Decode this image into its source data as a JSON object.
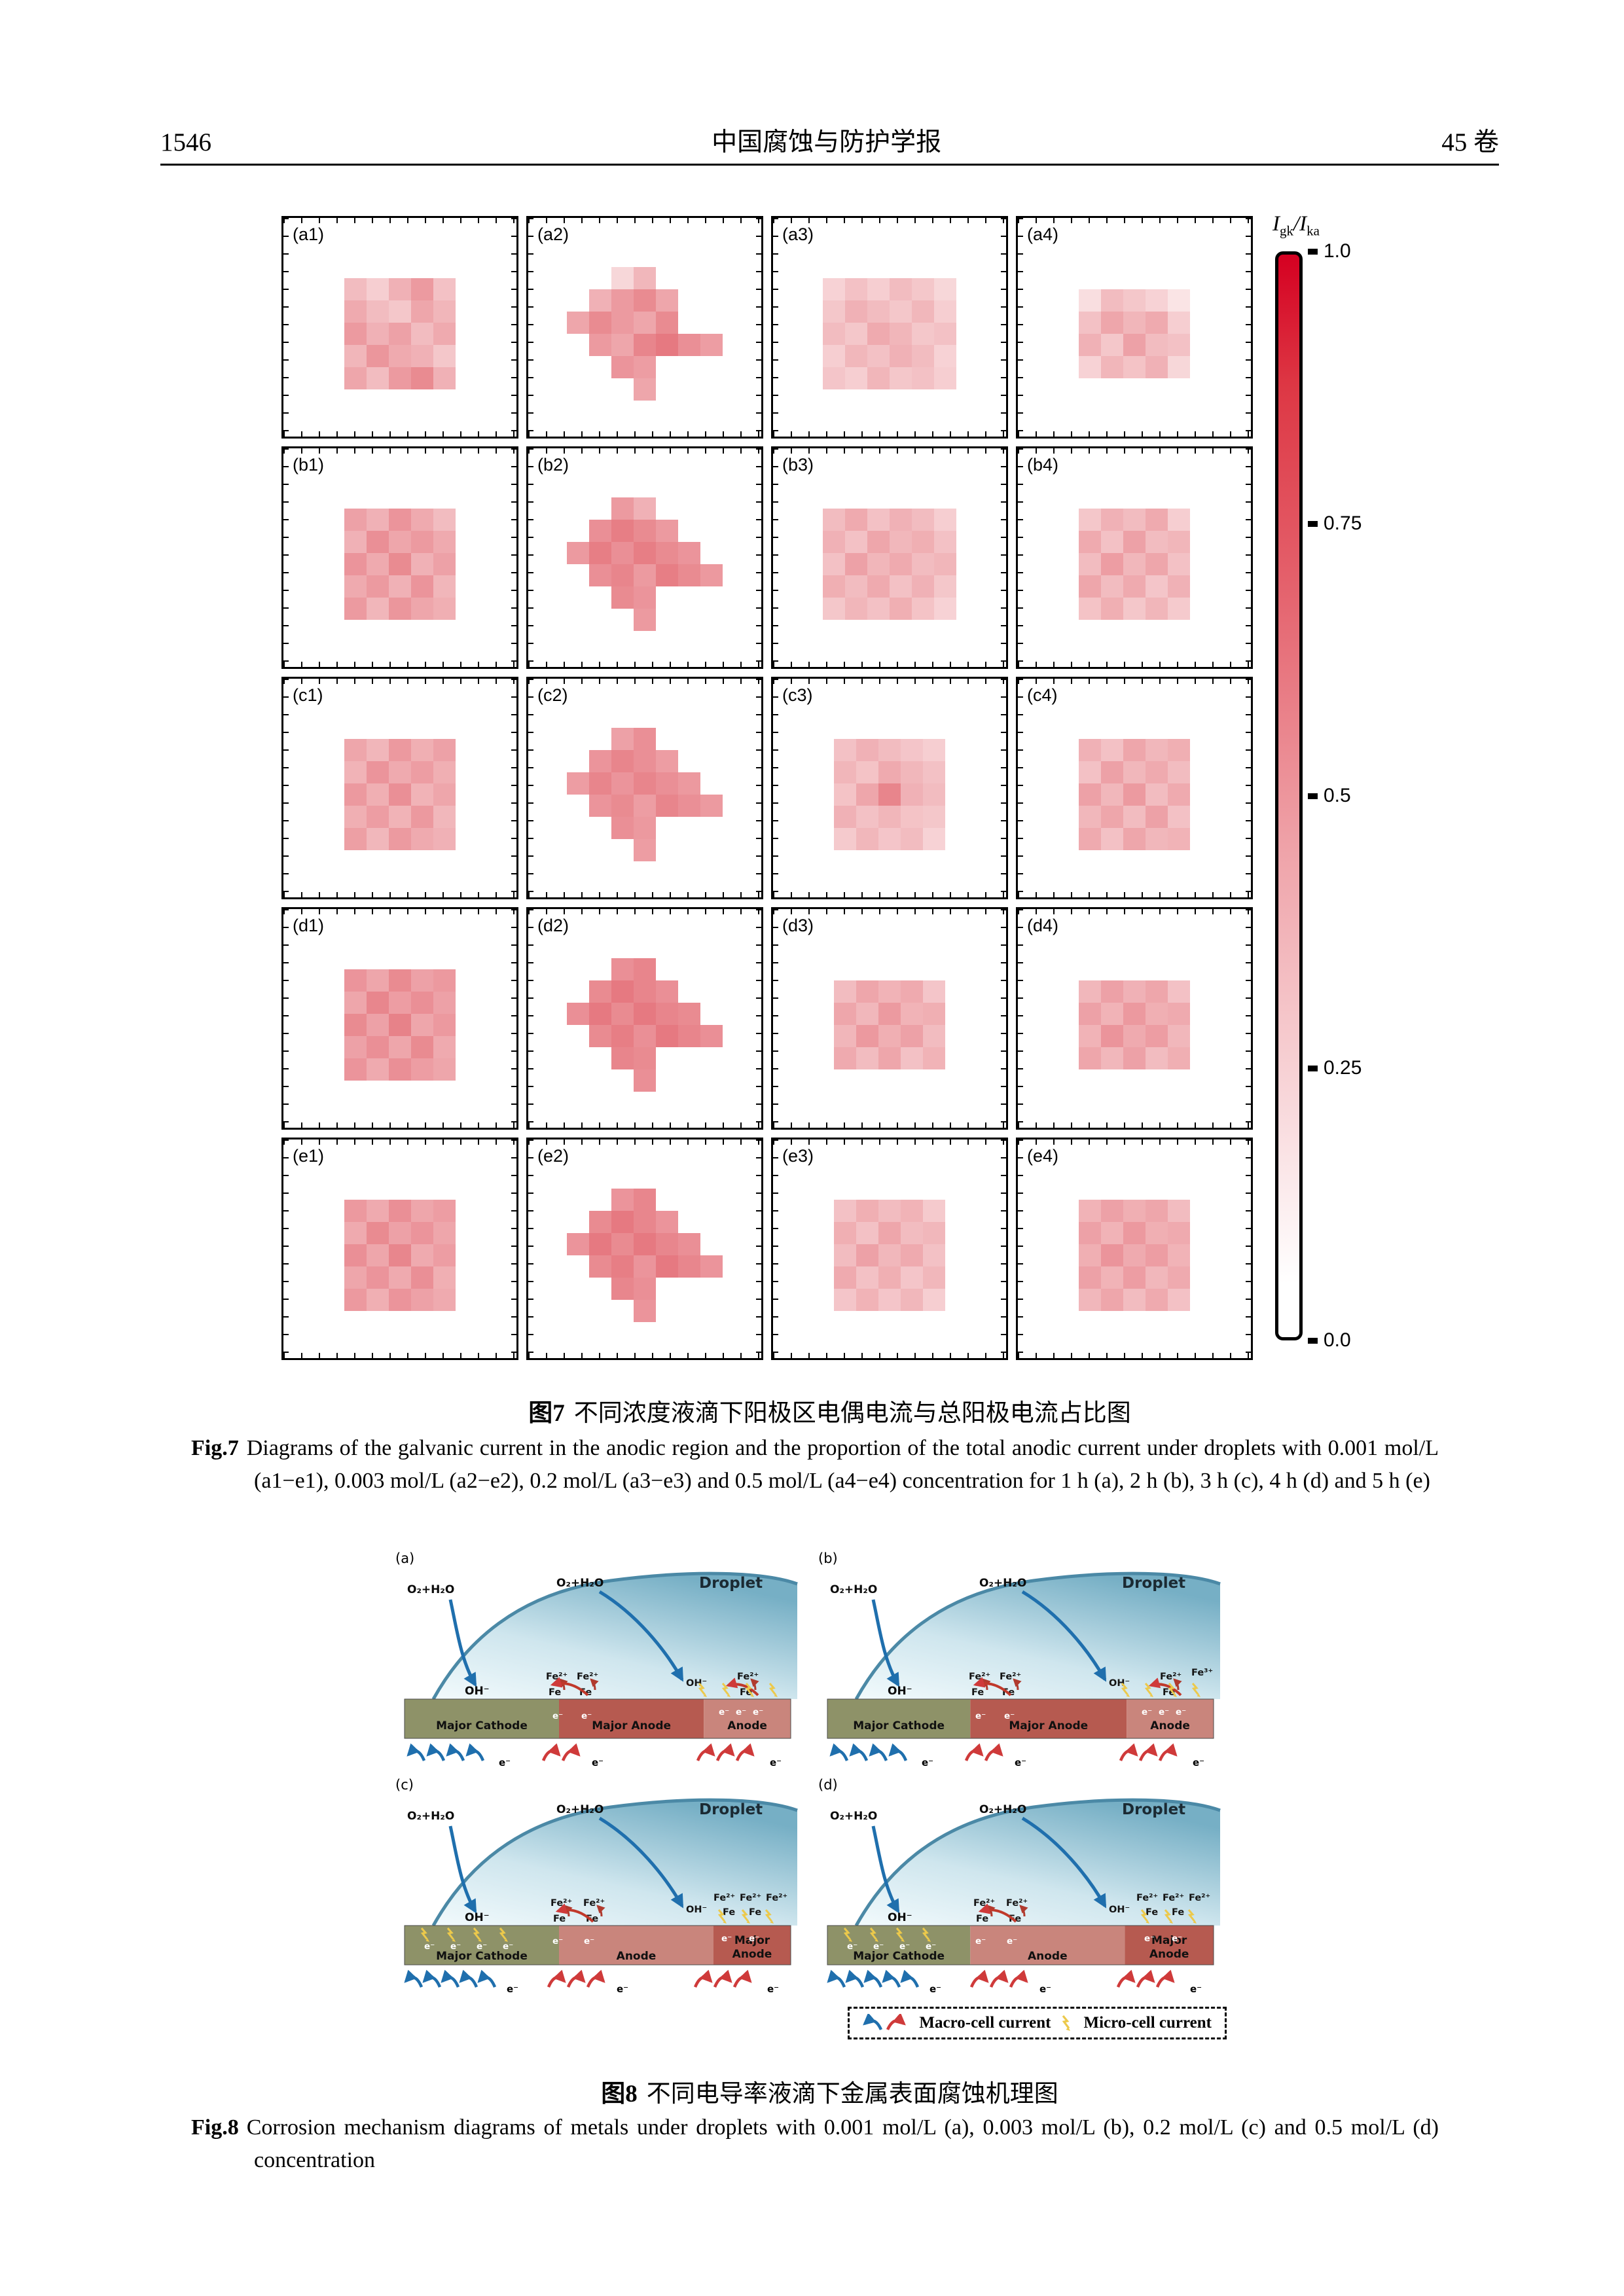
{
  "header": {
    "page_number": "1546",
    "journal": "中国腐蚀与防护学报",
    "volume": "45 卷"
  },
  "fig7": {
    "colorbar": {
      "title": {
        "i1": "I",
        "s1": "gk",
        "sep": "/",
        "i2": "I",
        "s2": "ka"
      },
      "ticks": [
        "1.0",
        "0.75",
        "0.5",
        "0.25",
        "0.0"
      ],
      "top_color": "#d50021",
      "bottom_color": "#ffffff"
    },
    "caption_cn_tag": "图7",
    "caption_cn": "不同浓度液滴下阳极区电偶电流与总阳极电流占比图",
    "caption_en_tag": "Fig.7",
    "caption_en": "Diagrams of the galvanic current in the anodic region and the proportion of the total anodic current under droplets with 0.001 mol/L (a1−e1), 0.003 mol/L (a2−e2), 0.2 mol/L (a3−e3) and 0.5 mol/L (a4−e4) concentration for 1 h (a), 2 h (b), 3 h (c), 4 h (d) and 5 h (e)",
    "heat_color": "213,32,45",
    "panels": [
      {
        "id": "a1",
        "label": "(a1)",
        "grid": [
          [
            0.3,
            0.22,
            0.35,
            0.45,
            0.28
          ],
          [
            0.38,
            0.3,
            0.25,
            0.4,
            0.33
          ],
          [
            0.45,
            0.35,
            0.42,
            0.3,
            0.38
          ],
          [
            0.33,
            0.47,
            0.38,
            0.35,
            0.25
          ],
          [
            0.4,
            0.3,
            0.45,
            0.52,
            0.35
          ]
        ]
      },
      {
        "id": "a2",
        "label": "(a2)",
        "grid": [
          [
            0,
            0,
            0.18,
            0.32,
            0,
            0,
            0
          ],
          [
            0,
            0.35,
            0.45,
            0.52,
            0.4,
            0,
            0
          ],
          [
            0.4,
            0.52,
            0.45,
            0.4,
            0.52,
            0,
            0
          ],
          [
            0,
            0.45,
            0.4,
            0.55,
            0.6,
            0.5,
            0.44
          ],
          [
            0,
            0,
            0.48,
            0.44,
            0,
            0,
            0
          ],
          [
            0,
            0,
            0,
            0.4,
            0,
            0,
            0
          ]
        ]
      },
      {
        "id": "a3",
        "label": "(a3)",
        "grid": [
          [
            0.2,
            0.28,
            0.22,
            0.3,
            0.25,
            0.18
          ],
          [
            0.25,
            0.35,
            0.3,
            0.25,
            0.32,
            0.22
          ],
          [
            0.3,
            0.25,
            0.38,
            0.33,
            0.25,
            0.28
          ],
          [
            0.22,
            0.32,
            0.28,
            0.35,
            0.3,
            0.2
          ],
          [
            0.26,
            0.22,
            0.33,
            0.25,
            0.28,
            0.22
          ]
        ]
      },
      {
        "id": "a4",
        "label": "(a4)",
        "grid": [
          [
            0.15,
            0.3,
            0.25,
            0.2,
            0.12
          ],
          [
            0.28,
            0.4,
            0.33,
            0.38,
            0.22
          ],
          [
            0.35,
            0.25,
            0.42,
            0.3,
            0.28
          ],
          [
            0.2,
            0.33,
            0.27,
            0.35,
            0.18
          ]
        ]
      },
      {
        "id": "b1",
        "label": "(b1)",
        "grid": [
          [
            0.42,
            0.35,
            0.48,
            0.38,
            0.3
          ],
          [
            0.35,
            0.5,
            0.4,
            0.45,
            0.38
          ],
          [
            0.48,
            0.38,
            0.52,
            0.35,
            0.42
          ],
          [
            0.38,
            0.45,
            0.35,
            0.48,
            0.33
          ],
          [
            0.45,
            0.33,
            0.47,
            0.4,
            0.36
          ]
        ]
      },
      {
        "id": "b2",
        "label": "(b2)",
        "grid": [
          [
            0,
            0,
            0.45,
            0.35,
            0,
            0,
            0
          ],
          [
            0,
            0.5,
            0.58,
            0.52,
            0.45,
            0,
            0
          ],
          [
            0.45,
            0.58,
            0.5,
            0.58,
            0.52,
            0.48,
            0
          ],
          [
            0,
            0.5,
            0.55,
            0.45,
            0.58,
            0.52,
            0.46
          ],
          [
            0,
            0,
            0.52,
            0.48,
            0,
            0,
            0
          ],
          [
            0,
            0,
            0,
            0.45,
            0,
            0,
            0
          ]
        ]
      },
      {
        "id": "b3",
        "label": "(b3)",
        "grid": [
          [
            0.3,
            0.38,
            0.28,
            0.35,
            0.3,
            0.22
          ],
          [
            0.35,
            0.28,
            0.4,
            0.32,
            0.36,
            0.28
          ],
          [
            0.28,
            0.42,
            0.33,
            0.38,
            0.3,
            0.33
          ],
          [
            0.36,
            0.3,
            0.38,
            0.28,
            0.35,
            0.25
          ],
          [
            0.25,
            0.33,
            0.28,
            0.36,
            0.27,
            0.2
          ]
        ]
      },
      {
        "id": "b4",
        "label": "(b4)",
        "grid": [
          [
            0.25,
            0.35,
            0.3,
            0.38,
            0.22
          ],
          [
            0.38,
            0.28,
            0.42,
            0.3,
            0.33
          ],
          [
            0.3,
            0.44,
            0.32,
            0.4,
            0.28
          ],
          [
            0.4,
            0.3,
            0.38,
            0.26,
            0.35
          ],
          [
            0.27,
            0.36,
            0.25,
            0.33,
            0.24
          ]
        ]
      },
      {
        "id": "c1",
        "label": "(c1)",
        "grid": [
          [
            0.4,
            0.33,
            0.46,
            0.36,
            0.42
          ],
          [
            0.34,
            0.48,
            0.38,
            0.44,
            0.36
          ],
          [
            0.46,
            0.36,
            0.5,
            0.34,
            0.4
          ],
          [
            0.36,
            0.44,
            0.34,
            0.46,
            0.32
          ],
          [
            0.43,
            0.32,
            0.45,
            0.38,
            0.35
          ]
        ]
      },
      {
        "id": "c2",
        "label": "(c2)",
        "grid": [
          [
            0,
            0,
            0.42,
            0.5,
            0,
            0,
            0
          ],
          [
            0,
            0.48,
            0.55,
            0.5,
            0.44,
            0,
            0
          ],
          [
            0.44,
            0.55,
            0.48,
            0.55,
            0.5,
            0.46,
            0
          ],
          [
            0,
            0.48,
            0.52,
            0.44,
            0.55,
            0.5,
            0.45
          ],
          [
            0,
            0,
            0.5,
            0.46,
            0,
            0,
            0
          ],
          [
            0,
            0,
            0,
            0.44,
            0,
            0,
            0
          ]
        ]
      },
      {
        "id": "c3",
        "label": "(c3)",
        "grid": [
          [
            0.28,
            0.35,
            0.3,
            0.26,
            0.22
          ],
          [
            0.33,
            0.27,
            0.38,
            0.32,
            0.28
          ],
          [
            0.27,
            0.4,
            0.55,
            0.35,
            0.3
          ],
          [
            0.35,
            0.28,
            0.33,
            0.27,
            0.25
          ],
          [
            0.24,
            0.32,
            0.26,
            0.3,
            0.2
          ]
        ]
      },
      {
        "id": "c4",
        "label": "(c4)",
        "grid": [
          [
            0.35,
            0.28,
            0.4,
            0.32,
            0.36
          ],
          [
            0.28,
            0.42,
            0.32,
            0.38,
            0.3
          ],
          [
            0.42,
            0.32,
            0.45,
            0.3,
            0.38
          ],
          [
            0.32,
            0.4,
            0.3,
            0.42,
            0.28
          ],
          [
            0.38,
            0.28,
            0.4,
            0.32,
            0.34
          ]
        ]
      },
      {
        "id": "d1",
        "label": "(d1)",
        "grid": [
          [
            0.48,
            0.4,
            0.52,
            0.42,
            0.46
          ],
          [
            0.4,
            0.54,
            0.44,
            0.5,
            0.42
          ],
          [
            0.52,
            0.42,
            0.56,
            0.4,
            0.46
          ],
          [
            0.42,
            0.5,
            0.4,
            0.52,
            0.38
          ],
          [
            0.48,
            0.38,
            0.5,
            0.44,
            0.4
          ]
        ]
      },
      {
        "id": "d2",
        "label": "(d2)",
        "grid": [
          [
            0,
            0,
            0.5,
            0.55,
            0,
            0,
            0
          ],
          [
            0,
            0.52,
            0.6,
            0.55,
            0.5,
            0,
            0
          ],
          [
            0.5,
            0.6,
            0.52,
            0.6,
            0.55,
            0.52,
            0
          ],
          [
            0,
            0.52,
            0.58,
            0.5,
            0.6,
            0.55,
            0.5
          ],
          [
            0,
            0,
            0.55,
            0.52,
            0,
            0,
            0
          ],
          [
            0,
            0,
            0,
            0.5,
            0,
            0,
            0
          ]
        ]
      },
      {
        "id": "d3",
        "label": "(d3)",
        "grid": [
          [
            0.3,
            0.4,
            0.34,
            0.38,
            0.26
          ],
          [
            0.4,
            0.32,
            0.45,
            0.34,
            0.36
          ],
          [
            0.33,
            0.46,
            0.36,
            0.42,
            0.3
          ],
          [
            0.38,
            0.3,
            0.4,
            0.28,
            0.34
          ]
        ]
      },
      {
        "id": "d4",
        "label": "(d4)",
        "grid": [
          [
            0.32,
            0.42,
            0.35,
            0.4,
            0.28
          ],
          [
            0.42,
            0.34,
            0.46,
            0.36,
            0.38
          ],
          [
            0.34,
            0.48,
            0.38,
            0.44,
            0.32
          ],
          [
            0.4,
            0.32,
            0.42,
            0.3,
            0.36
          ]
        ]
      },
      {
        "id": "e1",
        "label": "(e1)",
        "grid": [
          [
            0.46,
            0.38,
            0.5,
            0.4,
            0.44
          ],
          [
            0.38,
            0.52,
            0.42,
            0.48,
            0.4
          ],
          [
            0.5,
            0.4,
            0.54,
            0.38,
            0.44
          ],
          [
            0.4,
            0.48,
            0.38,
            0.5,
            0.36
          ],
          [
            0.46,
            0.36,
            0.48,
            0.42,
            0.38
          ]
        ]
      },
      {
        "id": "e2",
        "label": "(e2)",
        "grid": [
          [
            0,
            0,
            0.48,
            0.54,
            0,
            0,
            0
          ],
          [
            0,
            0.52,
            0.6,
            0.54,
            0.48,
            0,
            0
          ],
          [
            0.48,
            0.6,
            0.52,
            0.6,
            0.54,
            0.5,
            0
          ],
          [
            0,
            0.52,
            0.58,
            0.48,
            0.6,
            0.54,
            0.48
          ],
          [
            0,
            0,
            0.54,
            0.5,
            0,
            0,
            0
          ],
          [
            0,
            0,
            0,
            0.48,
            0,
            0,
            0
          ]
        ]
      },
      {
        "id": "e3",
        "label": "(e3)",
        "grid": [
          [
            0.28,
            0.36,
            0.3,
            0.34,
            0.24
          ],
          [
            0.36,
            0.28,
            0.4,
            0.3,
            0.32
          ],
          [
            0.3,
            0.42,
            0.32,
            0.38,
            0.28
          ],
          [
            0.38,
            0.28,
            0.36,
            0.26,
            0.32
          ],
          [
            0.26,
            0.34,
            0.26,
            0.32,
            0.22
          ]
        ]
      },
      {
        "id": "e4",
        "label": "(e4)",
        "grid": [
          [
            0.34,
            0.42,
            0.36,
            0.4,
            0.3
          ],
          [
            0.42,
            0.34,
            0.46,
            0.36,
            0.38
          ],
          [
            0.36,
            0.48,
            0.38,
            0.44,
            0.34
          ],
          [
            0.42,
            0.34,
            0.44,
            0.32,
            0.38
          ],
          [
            0.32,
            0.4,
            0.3,
            0.38,
            0.28
          ]
        ]
      }
    ]
  },
  "fig8": {
    "labels": {
      "droplet": "Droplet",
      "o2h2o": "O₂+H₂O",
      "oh": "OH⁻",
      "fe2": "Fe²⁺",
      "fe3": "Fe³⁺",
      "fe": "Fe",
      "e": "e⁻"
    },
    "colors": {
      "cathode": "#8e9268",
      "major_anode": "#b65a50",
      "anode": "#c9857c",
      "droplet_edge": "#4b89a6",
      "macro_blue": "#1f6fad",
      "macro_red": "#cf3a3a",
      "micro_yellow": "#ecc94b"
    },
    "diagrams": [
      {
        "label": "(a)",
        "variant": "ab",
        "fe_right": "fe2",
        "oh_mid": true,
        "segments": [
          {
            "label": "Major Cathode",
            "color": "#8e9268",
            "w": 0.4
          },
          {
            "label": "Major Anode",
            "color": "#b65a50",
            "w": 0.375
          },
          {
            "label": "Anode",
            "color": "#c9857c",
            "w": 0.225
          }
        ]
      },
      {
        "label": "(b)",
        "variant": "ab",
        "fe_right": "fe3",
        "oh_mid": true,
        "segments": [
          {
            "label": "Major Cathode",
            "color": "#8e9268",
            "w": 0.37
          },
          {
            "label": "Major Anode",
            "color": "#b65a50",
            "w": 0.405
          },
          {
            "label": "Anode",
            "color": "#c9857c",
            "w": 0.225
          }
        ]
      },
      {
        "label": "(c)",
        "variant": "cd",
        "oh_mid": true,
        "segments": [
          {
            "label": "Major Cathode",
            "color": "#8e9268",
            "w": 0.4
          },
          {
            "label": "Anode",
            "color": "#c9857c",
            "w": 0.4
          },
          {
            "label": "Major Anode",
            "color": "#b65a50",
            "w": 0.2,
            "two_line": true
          }
        ]
      },
      {
        "label": "(d)",
        "variant": "cd",
        "oh_mid": true,
        "segments": [
          {
            "label": "Major Cathode",
            "color": "#8e9268",
            "w": 0.37
          },
          {
            "label": "Anode",
            "color": "#c9857c",
            "w": 0.4
          },
          {
            "label": "Major Anode",
            "color": "#b65a50",
            "w": 0.23,
            "two_line": true
          }
        ]
      }
    ],
    "legend": {
      "macro": "Macro-cell current",
      "micro": "Micro-cell current"
    },
    "caption_cn_tag": "图8",
    "caption_cn": "不同电导率液滴下金属表面腐蚀机理图",
    "caption_en_tag": "Fig.8",
    "caption_en": "Corrosion mechanism diagrams of metals under droplets with 0.001 mol/L (a), 0.003 mol/L (b), 0.2 mol/L (c) and 0.5 mol/L (d) concentration"
  }
}
